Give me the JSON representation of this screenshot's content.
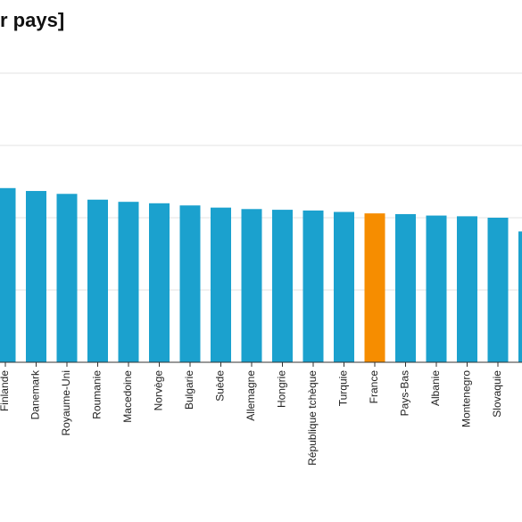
{
  "chart_data": {
    "type": "bar",
    "title": "r pays]",
    "xlabel": "",
    "ylabel": "",
    "ylim": [
      0,
      400
    ],
    "grid": true,
    "categories": [
      "Finlande",
      "Danemark",
      "Royaume-Uni",
      "Roumanie",
      "Macedoine",
      "Norvège",
      "Bulgarie",
      "Suède",
      "Allemagne",
      "Hongrie",
      "République tchèque",
      "Turquie",
      "France",
      "Pays-Bas",
      "Albanie",
      "Montenegro",
      "Slovaquie",
      ""
    ],
    "values": [
      241,
      237,
      233,
      225,
      222,
      220,
      217,
      214,
      212,
      211,
      210,
      208,
      206,
      205,
      203,
      202,
      200,
      181
    ],
    "highlight_category": "France",
    "colors": {
      "bar": "#1ba1ce",
      "highlight": "#f68d00",
      "grid": "#e3e3e3",
      "axis": "#333333"
    }
  }
}
